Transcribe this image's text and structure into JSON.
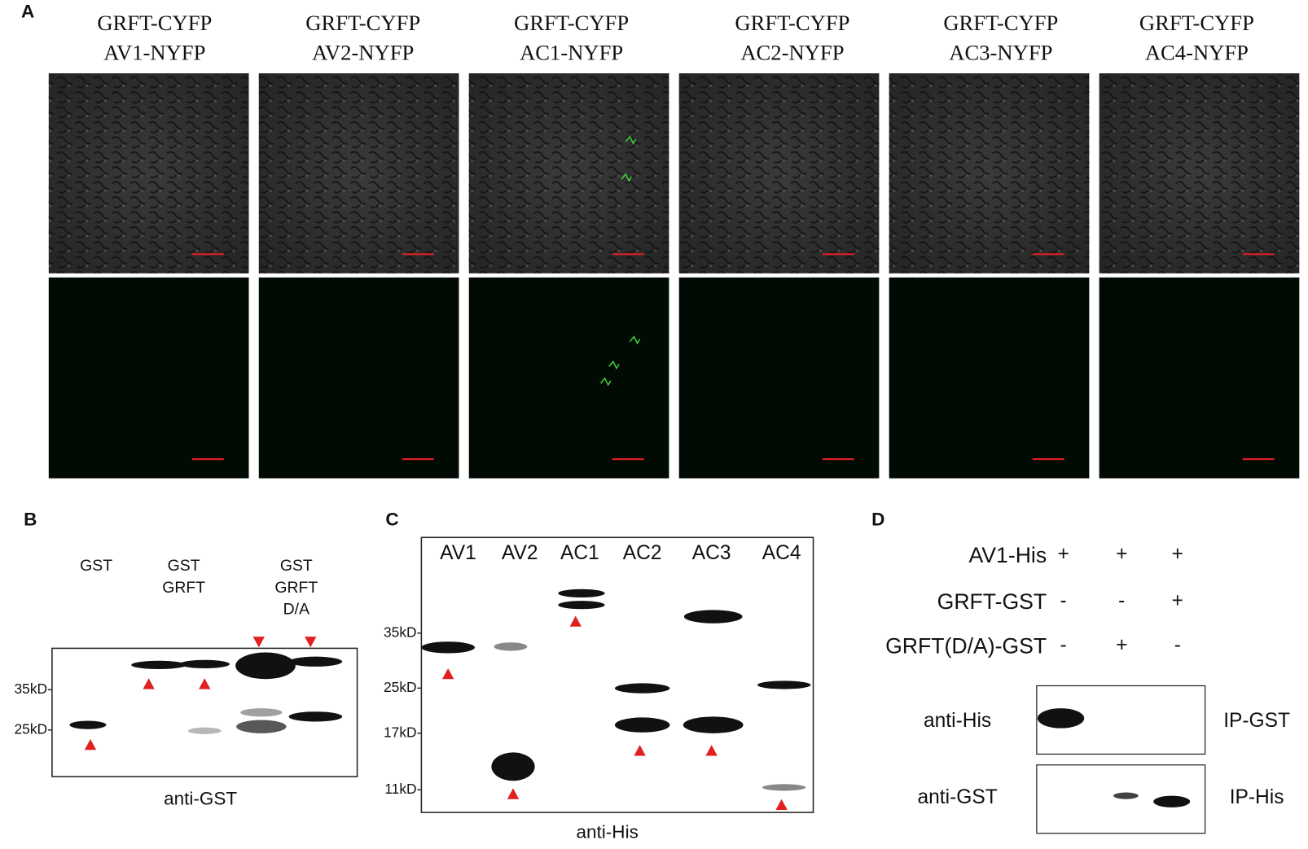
{
  "panel_a": {
    "label": "A",
    "columns": [
      {
        "top": "GRFT-CYFP",
        "bottom": "AV1-NYFP"
      },
      {
        "top": "GRFT-CYFP",
        "bottom": "AV2-NYFP"
      },
      {
        "top": "GRFT-CYFP",
        "bottom": "AC1-NYFP"
      },
      {
        "top": "GRFT-CYFP",
        "bottom": "AC2-NYFP"
      },
      {
        "top": "GRFT-CYFP",
        "bottom": "AC3-NYFP"
      },
      {
        "top": "GRFT-CYFP",
        "bottom": "AC4-NYFP"
      }
    ]
  },
  "panel_b": {
    "label": "B",
    "lanes": [
      [
        "GST"
      ],
      [
        "GST",
        "GRFT"
      ],
      [
        "GST",
        "GRFT",
        "D/A"
      ]
    ],
    "markers": [
      "35kD-",
      "25kD-"
    ],
    "antibody": "anti-GST"
  },
  "panel_c": {
    "label": "C",
    "lanes": [
      "AV1",
      "AV2",
      "AC1",
      "AC2",
      "AC3",
      "AC4"
    ],
    "markers": [
      "35kD-",
      "25kD-",
      "17kD-",
      "11kD-"
    ],
    "antibody": "anti-His"
  },
  "panel_d": {
    "label": "D",
    "rows": [
      {
        "name": "AV1-His",
        "signs": [
          "+",
          "+",
          "+"
        ]
      },
      {
        "name": "GRFT-GST",
        "signs": [
          "-",
          "-",
          "+"
        ]
      },
      {
        "name": "GRFT(D/A)-GST",
        "signs": [
          "-",
          "+",
          "-"
        ]
      }
    ],
    "blots": [
      {
        "antibody": "anti-His",
        "ip": "IP-GST"
      },
      {
        "antibody": "anti-GST",
        "ip": "IP-His"
      }
    ]
  }
}
